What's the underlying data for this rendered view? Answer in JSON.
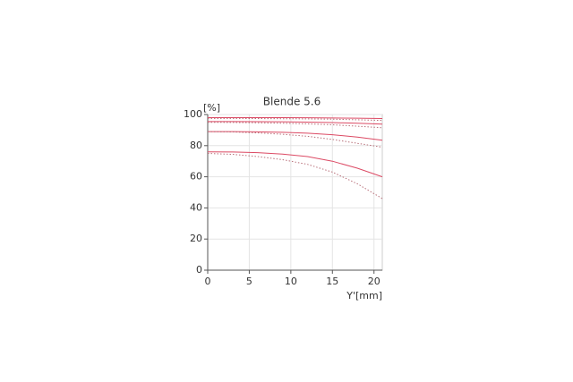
{
  "chart_data": {
    "type": "line",
    "title": "Blende 5.6",
    "y_label": "[%]",
    "x_label": "Y'[mm]",
    "x": [
      0,
      3,
      6,
      9,
      12,
      15,
      18,
      21
    ],
    "series": [
      {
        "color": "#dc4a64",
        "style": "solid",
        "values": [
          98,
          98,
          98,
          98,
          97.9,
          97.8,
          97.6,
          97.4
        ]
      },
      {
        "color": "#b8707a",
        "style": "dotted",
        "values": [
          97.5,
          97.5,
          97.4,
          97.3,
          97.2,
          97,
          96.6,
          96.2
        ]
      },
      {
        "color": "#dc4a64",
        "style": "solid",
        "values": [
          95.5,
          95.5,
          95.4,
          95.3,
          95.1,
          94.8,
          94.4,
          93.8
        ]
      },
      {
        "color": "#b8707a",
        "style": "dotted",
        "values": [
          95,
          94.9,
          94.7,
          94.4,
          94,
          93.4,
          92.5,
          91.5
        ]
      },
      {
        "color": "#dc4a64",
        "style": "solid",
        "values": [
          89,
          89,
          88.9,
          88.6,
          88,
          87,
          85.5,
          83.5
        ]
      },
      {
        "color": "#b8707a",
        "style": "dotted",
        "values": [
          89,
          88.8,
          88.2,
          87.3,
          86,
          84,
          81.5,
          79
        ]
      },
      {
        "color": "#dc4a64",
        "style": "solid",
        "values": [
          76,
          75.9,
          75.5,
          74.6,
          73,
          70,
          65.5,
          60
        ]
      },
      {
        "color": "#b8707a",
        "style": "dotted",
        "values": [
          75,
          74.4,
          73,
          71,
          68,
          63,
          55.5,
          46
        ]
      }
    ],
    "xlim": [
      0,
      21
    ],
    "ylim": [
      0,
      100
    ],
    "xticks": [
      0,
      5,
      10,
      15,
      20
    ],
    "yticks": [
      0,
      20,
      40,
      60,
      80,
      100
    ],
    "grid": true
  }
}
